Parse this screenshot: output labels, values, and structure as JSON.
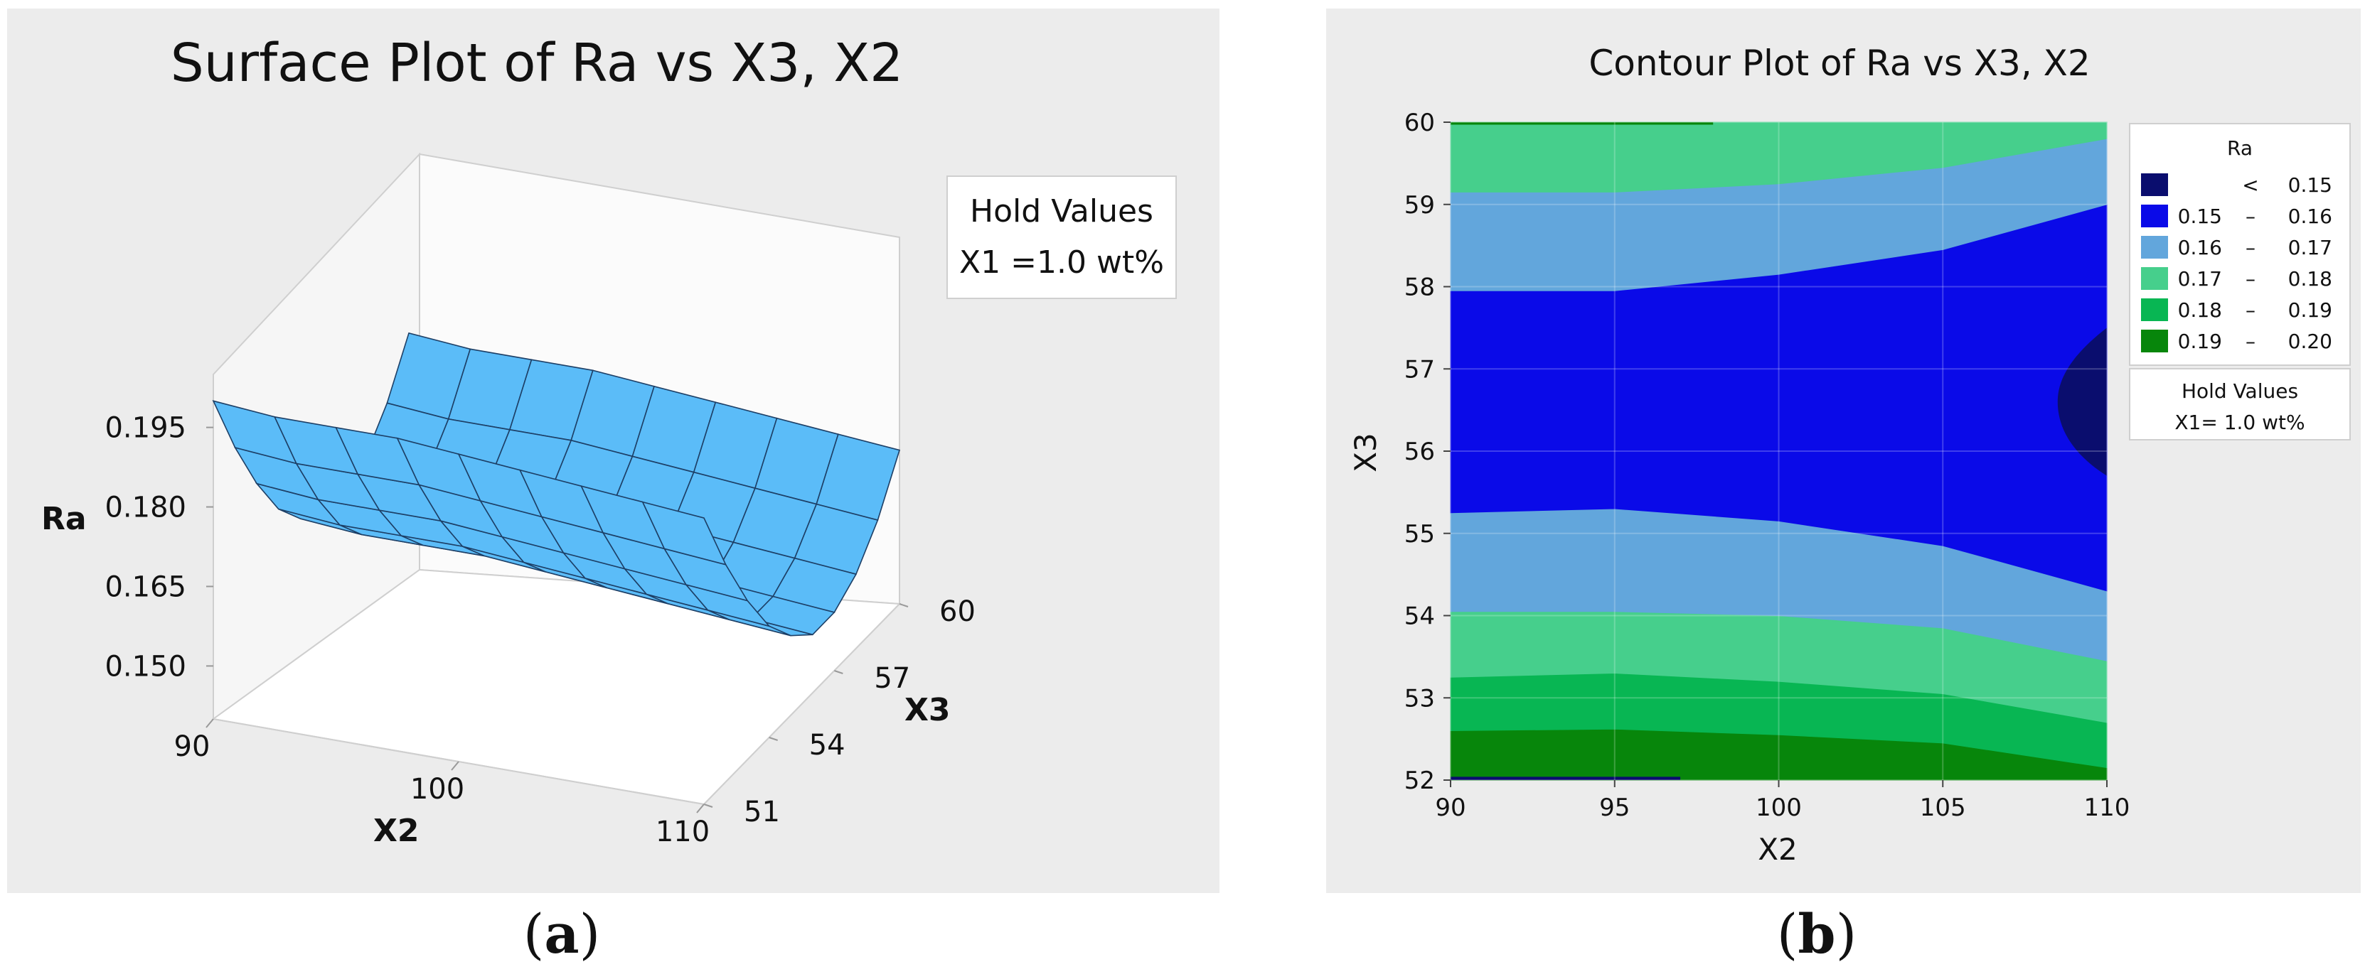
{
  "panel_a": {
    "title": "Surface Plot of Ra vs X3, X2",
    "hold_title": "Hold Values",
    "hold_value": "X1 =1.0 wt%",
    "caption_open": "(",
    "caption_letter": "a",
    "caption_close": ")"
  },
  "panel_b": {
    "title": "Contour Plot of Ra vs X3, X2",
    "legend_title": "Ra",
    "hold_title": "Hold Values",
    "hold_value": "X1= 1.0 wt%",
    "caption_open": "(",
    "caption_letter": "b",
    "caption_close": ")"
  },
  "colors": {
    "panel_bg": "#ececec",
    "surface": "#5bbcf8",
    "lt015": "#0a0d6e",
    "b015_016": "#0a0ae8",
    "b016_017": "#62a6dc",
    "b017_018": "#46cf8c",
    "b018_019": "#08b653",
    "b019_020": "#07860b"
  },
  "chart_data": [
    {
      "type": "surface",
      "title": "Surface Plot of Ra vs X3, X2",
      "xlabel": "X2",
      "ylabel": "X3",
      "zlabel": "Ra",
      "x_ticks": [
        "90",
        "100",
        "110"
      ],
      "y_ticks": [
        "51",
        "54",
        "57",
        "60"
      ],
      "z_ticks": [
        "0.150",
        "0.165",
        "0.180",
        "0.195"
      ],
      "xlim": [
        90,
        110
      ],
      "ylim": [
        51,
        60
      ],
      "zlim": [
        0.14,
        0.205
      ],
      "grid_x": [
        90,
        92.5,
        95,
        97.5,
        100,
        102.5,
        105,
        107.5,
        110
      ],
      "grid_y": [
        51,
        52,
        53,
        54,
        55,
        56,
        57,
        58,
        59,
        60
      ],
      "z_rows": [
        [
          0.2,
          0.199,
          0.199,
          0.199,
          0.198,
          0.197,
          0.196,
          0.195,
          0.194
        ],
        [
          0.187,
          0.186,
          0.186,
          0.186,
          0.185,
          0.184,
          0.183,
          0.182,
          0.181
        ],
        [
          0.176,
          0.175,
          0.175,
          0.175,
          0.174,
          0.173,
          0.172,
          0.171,
          0.17
        ],
        [
          0.167,
          0.166,
          0.166,
          0.166,
          0.165,
          0.164,
          0.163,
          0.162,
          0.161
        ],
        [
          0.161,
          0.16,
          0.16,
          0.16,
          0.159,
          0.158,
          0.157,
          0.156,
          0.155
        ],
        [
          0.157,
          0.156,
          0.156,
          0.156,
          0.155,
          0.154,
          0.153,
          0.152,
          0.151
        ],
        [
          0.157,
          0.156,
          0.156,
          0.156,
          0.155,
          0.154,
          0.153,
          0.152,
          0.151
        ],
        [
          0.16,
          0.159,
          0.159,
          0.159,
          0.158,
          0.157,
          0.156,
          0.155,
          0.154
        ],
        [
          0.166,
          0.165,
          0.165,
          0.165,
          0.164,
          0.163,
          0.162,
          0.161,
          0.16
        ],
        [
          0.175,
          0.174,
          0.174,
          0.174,
          0.173,
          0.172,
          0.171,
          0.17,
          0.169
        ]
      ]
    },
    {
      "type": "contour",
      "title": "Contour Plot of Ra vs X3, X2",
      "xlabel": "X2",
      "ylabel": "X3",
      "xlim": [
        90,
        110
      ],
      "ylim": [
        52,
        60
      ],
      "x_ticks": [
        "90",
        "95",
        "100",
        "105",
        "110"
      ],
      "y_ticks": [
        "52",
        "53",
        "54",
        "55",
        "56",
        "57",
        "58",
        "59",
        "60"
      ],
      "legend_title": "Ra",
      "levels": [
        {
          "lo": "",
          "sep": "<",
          "hi": "0.15",
          "color": "#0a0d6e"
        },
        {
          "lo": "0.15",
          "sep": "–",
          "hi": "0.16",
          "color": "#0a0ae8"
        },
        {
          "lo": "0.16",
          "sep": "–",
          "hi": "0.17",
          "color": "#62a6dc"
        },
        {
          "lo": "0.17",
          "sep": "–",
          "hi": "0.18",
          "color": "#46cf8c"
        },
        {
          "lo": "0.18",
          "sep": "–",
          "hi": "0.19",
          "color": "#08b653"
        },
        {
          "lo": "0.19",
          "sep": "–",
          "hi": "0.20",
          "color": "#07860b"
        }
      ],
      "boundaries": {
        "x": [
          90,
          95,
          100,
          105,
          110
        ],
        "b_low_019": [
          52.6,
          52.62,
          52.55,
          52.45,
          52.15
        ],
        "b_low_018": [
          53.25,
          53.3,
          53.2,
          53.05,
          52.7
        ],
        "b_low_017": [
          54.05,
          54.05,
          54.0,
          53.85,
          53.45
        ],
        "b_low_016": [
          55.25,
          55.3,
          55.15,
          54.85,
          54.3
        ],
        "b_high_016": [
          57.95,
          57.95,
          58.15,
          58.45,
          59.0
        ],
        "b_high_017": [
          59.15,
          59.15,
          59.25,
          59.45,
          59.8
        ],
        "b_high_018": [
          60.0,
          60.0,
          60.0,
          60.0,
          60.0
        ],
        "lt015_region": {
          "x_from": 108.5,
          "y_top": 57.5,
          "y_bottom": 55.7,
          "x_mid_at": 56.6
        }
      }
    }
  ]
}
